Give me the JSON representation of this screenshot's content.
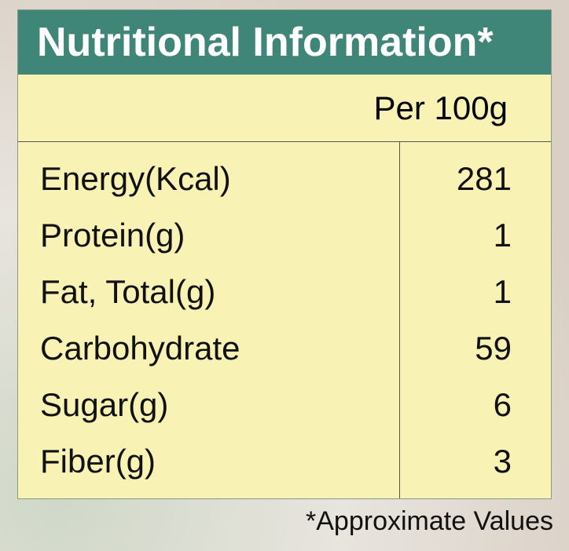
{
  "header": {
    "title": "Nutritional Information*"
  },
  "table": {
    "column_header": "Per 100g",
    "rows": [
      [
        "Energy(Kcal)",
        "281"
      ],
      [
        "Protein(g)",
        "1"
      ],
      [
        "Fat, Total(g)",
        "1"
      ],
      [
        "Carbohydrate",
        "59"
      ],
      [
        "Sugar(g)",
        "6"
      ],
      [
        "Fiber(g)",
        "3"
      ]
    ]
  },
  "footnote": "*Approximate Values"
}
